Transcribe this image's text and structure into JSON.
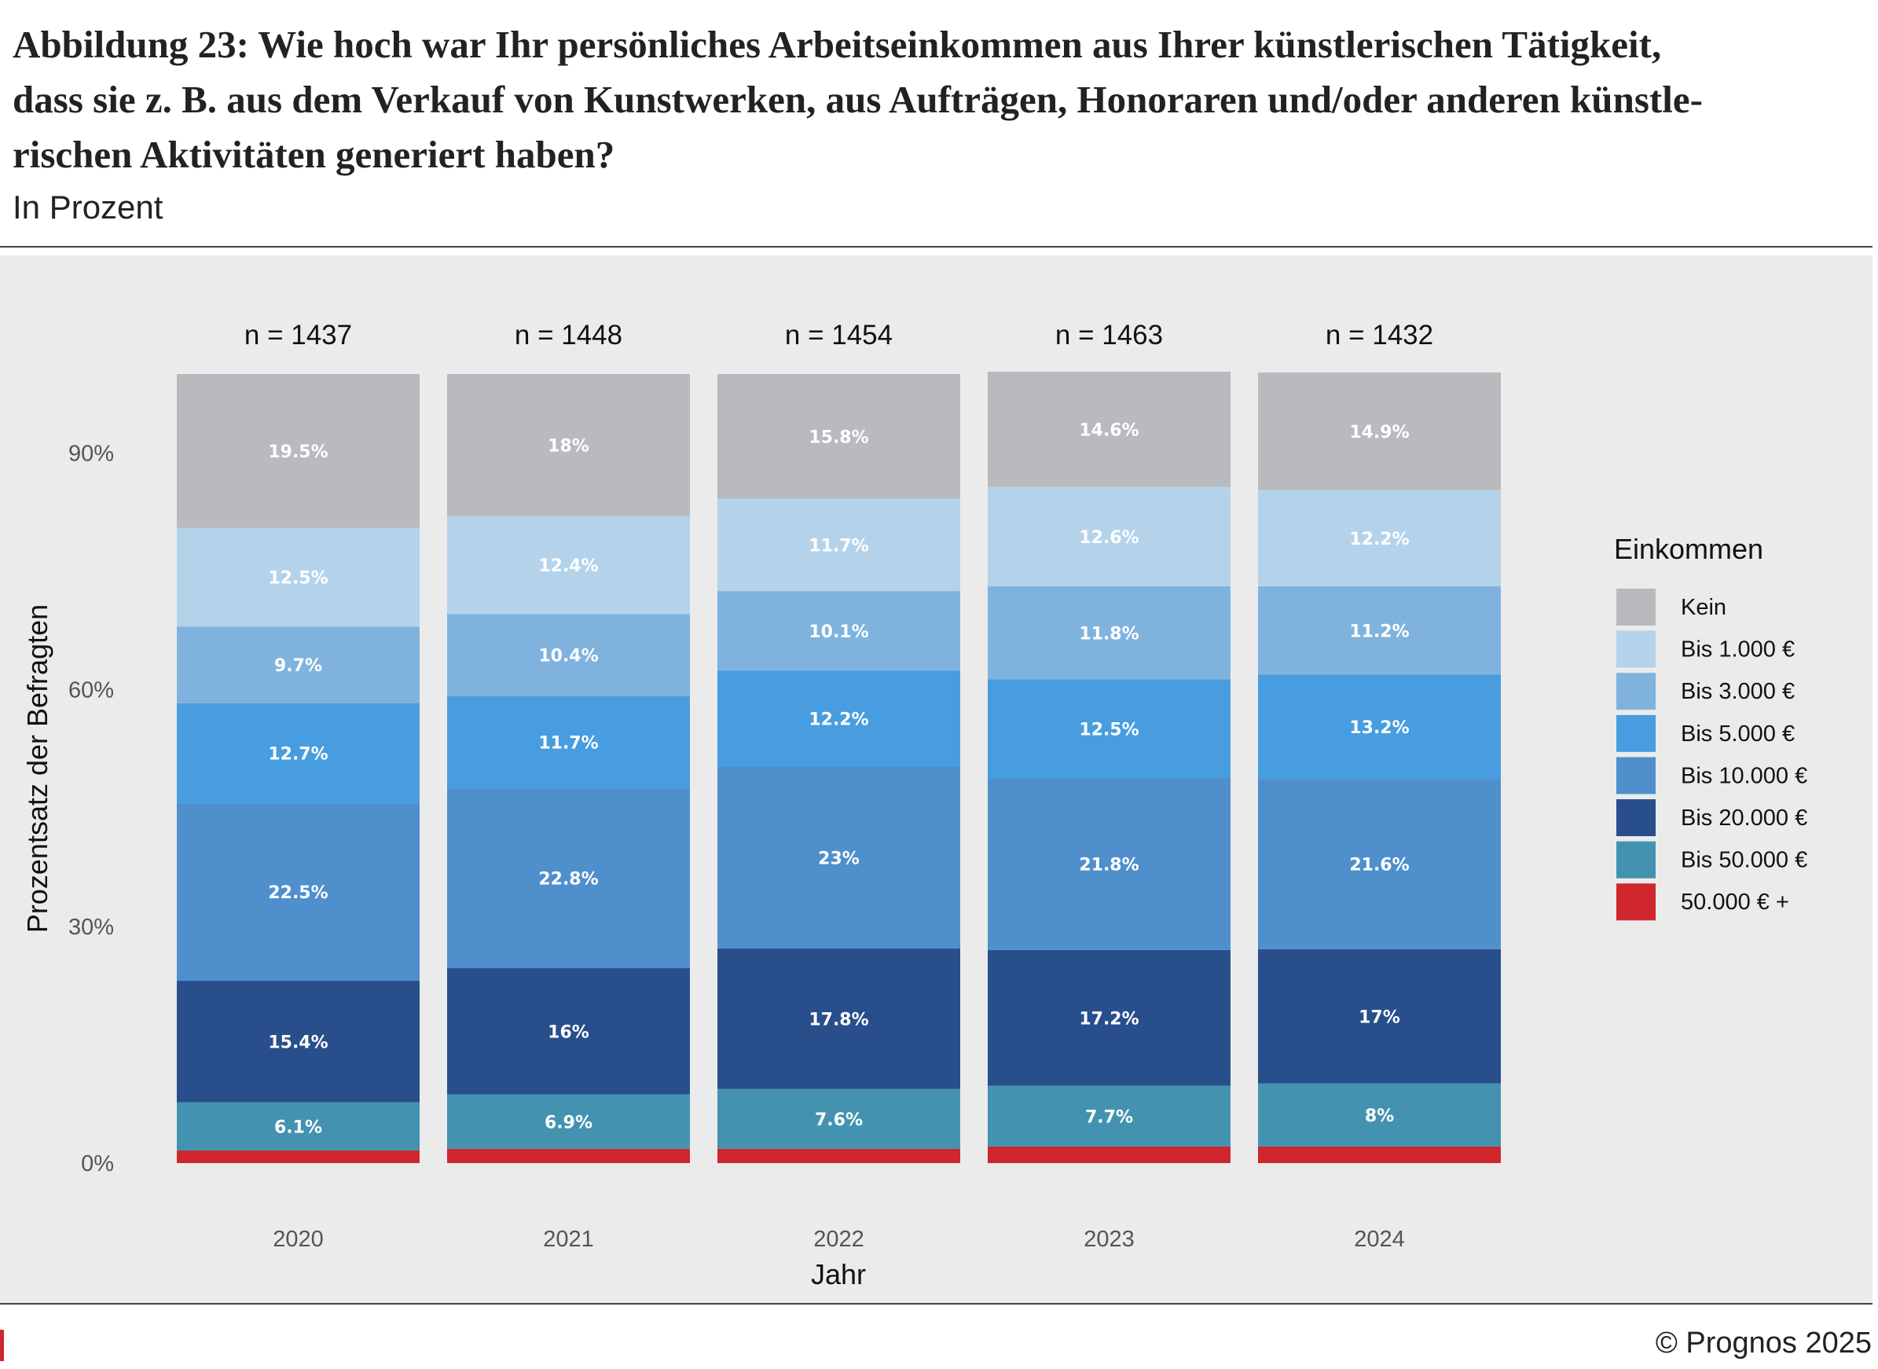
{
  "header": {
    "title": "Abbildung 23: Wie hoch war Ihr persönliches Arbeitseinkommen aus Ihrer künstlerischen Tätigkeit, dass sie z. B. aus dem Verkauf von Kunstwerken, aus Aufträgen, Honoraren und/oder anderen künstlerischen Aktivitäten generiert haben?",
    "title_lines": [
      "Abbildung 23: Wie hoch war Ihr persönliches Arbeitseinkommen aus Ihrer künstlerischen Tätigkeit,",
      "dass sie z. B. aus dem Verkauf von Kunstwerken, aus Aufträgen, Honoraren und/oder anderen künstle-",
      "rischen Aktivitäten generiert haben?"
    ],
    "subtitle": "In Prozent"
  },
  "footer": {
    "copyright": "© Prognos 2025",
    "accent_color": "#d0262e"
  },
  "chart_data": {
    "type": "bar",
    "stacked": true,
    "categories": [
      "2020",
      "2021",
      "2022",
      "2023",
      "2024"
    ],
    "n_labels": [
      "n = 1437",
      "n = 1448",
      "n = 1454",
      "n = 1463",
      "n = 1432"
    ],
    "xlabel": "Jahr",
    "ylabel": "Prozentsatz der Befragten",
    "ylim": [
      0,
      100
    ],
    "yticks": [
      0,
      30,
      60,
      90
    ],
    "ytick_labels": [
      "0%",
      "30%",
      "60%",
      "90%"
    ],
    "grid": false,
    "legend": {
      "title": "Einkommen",
      "position": "right"
    },
    "series": [
      {
        "name": "50.000 € +",
        "color": "#d0262e",
        "values": [
          1.6,
          1.8,
          1.8,
          2.1,
          2.1
        ],
        "labels": [
          "",
          "",
          "",
          "",
          ""
        ]
      },
      {
        "name": "Bis 50.000 €",
        "color": "#4393b0",
        "values": [
          6.1,
          6.9,
          7.6,
          7.7,
          8.0
        ],
        "labels": [
          "6.1%",
          "6.9%",
          "7.6%",
          "7.7%",
          "8%"
        ]
      },
      {
        "name": "Bis 20.000 €",
        "color": "#284e8c",
        "values": [
          15.4,
          16.0,
          17.8,
          17.2,
          17.0
        ],
        "labels": [
          "15.4%",
          "16%",
          "17.8%",
          "17.2%",
          "17%"
        ]
      },
      {
        "name": "Bis 10.000 €",
        "color": "#4f8fcc",
        "values": [
          22.5,
          22.8,
          23.0,
          21.8,
          21.6
        ],
        "labels": [
          "22.5%",
          "22.8%",
          "23%",
          "21.8%",
          "21.6%"
        ]
      },
      {
        "name": "Bis 5.000 €",
        "color": "#479ddf",
        "values": [
          12.7,
          11.7,
          12.2,
          12.5,
          13.2
        ],
        "labels": [
          "12.7%",
          "11.7%",
          "12.2%",
          "12.5%",
          "13.2%"
        ]
      },
      {
        "name": "Bis 3.000 €",
        "color": "#7fb3de",
        "values": [
          9.7,
          10.4,
          10.1,
          11.8,
          11.2
        ],
        "labels": [
          "9.7%",
          "10.4%",
          "10.1%",
          "11.8%",
          "11.2%"
        ]
      },
      {
        "name": "Bis 1.000 €",
        "color": "#b4d3eb",
        "values": [
          12.5,
          12.4,
          11.7,
          12.6,
          12.2
        ],
        "labels": [
          "12.5%",
          "12.4%",
          "11.7%",
          "12.6%",
          "12.2%"
        ]
      },
      {
        "name": "Kein",
        "color": "#b8babd",
        "values": [
          19.5,
          18.0,
          15.8,
          14.6,
          14.9
        ],
        "labels": [
          "19.5%",
          "18%",
          "15.8%",
          "14.6%",
          "14.9%"
        ]
      }
    ],
    "legend_order": [
      "Kein",
      "Bis 1.000 €",
      "Bis 3.000 €",
      "Bis 5.000 €",
      "Bis 10.000 €",
      "Bis 20.000 €",
      "Bis 50.000 €",
      "50.000 € +"
    ]
  }
}
